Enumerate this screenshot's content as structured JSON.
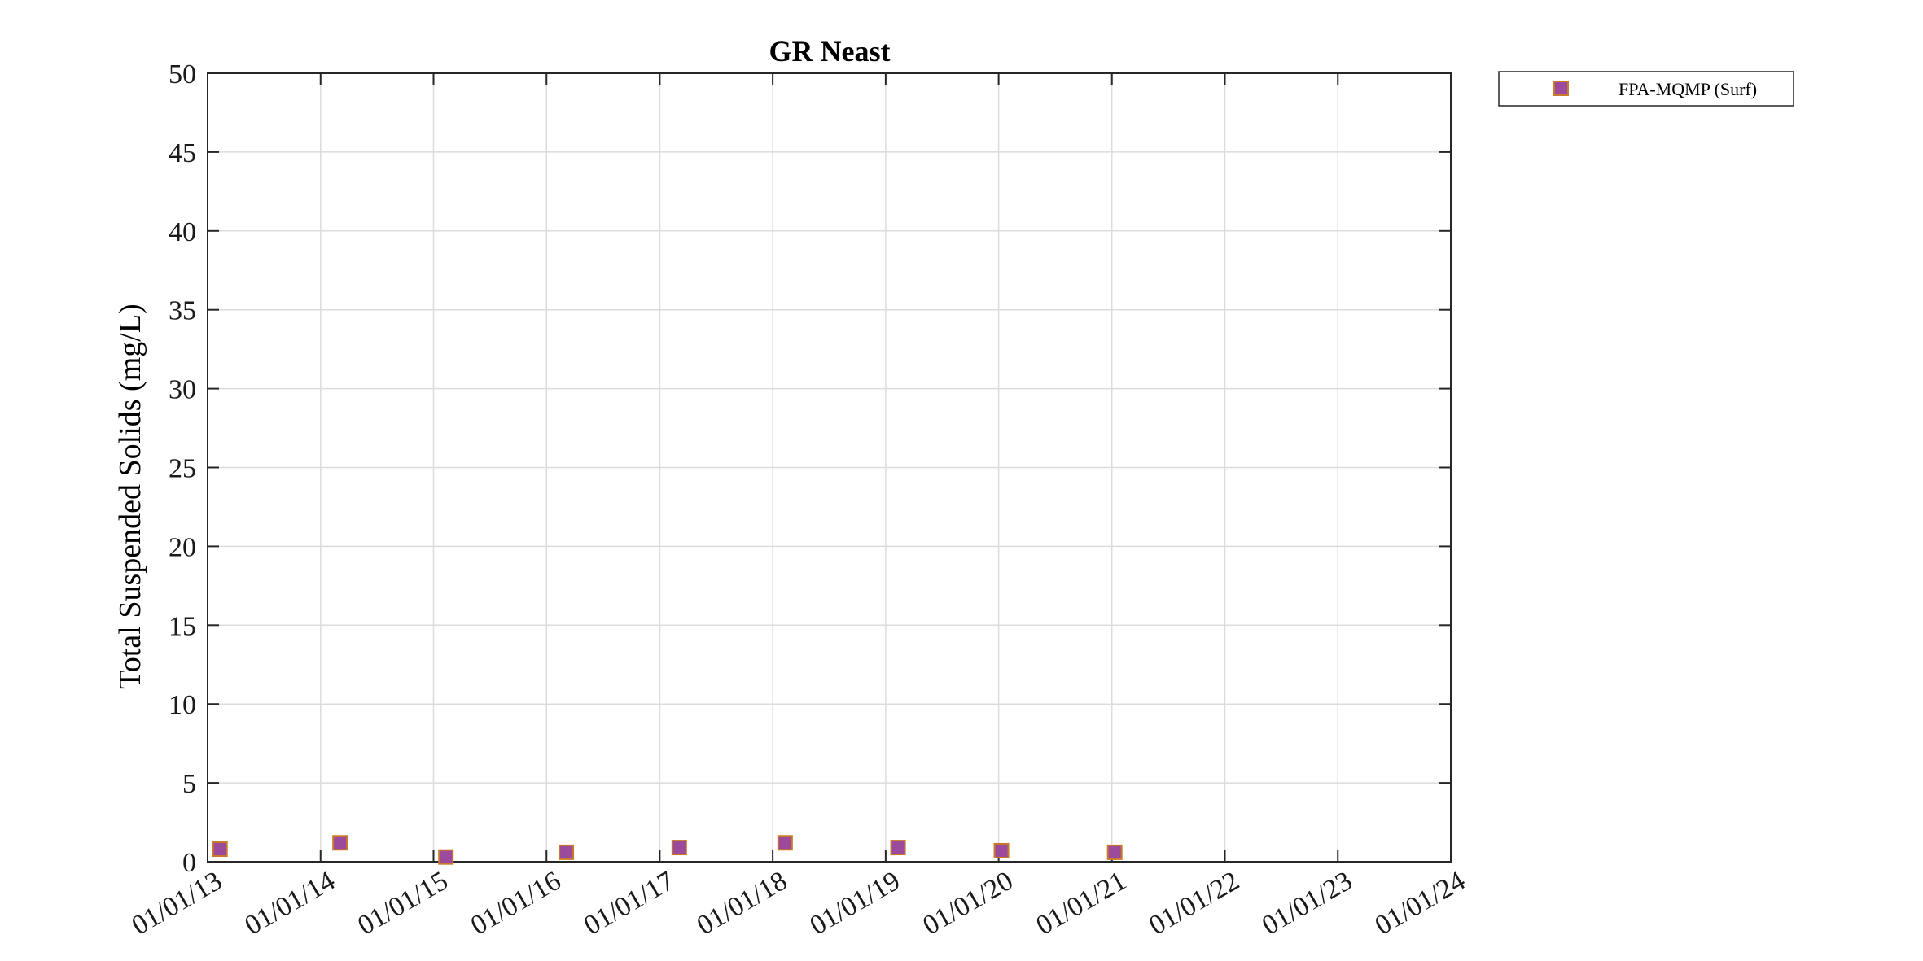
{
  "chart_data": {
    "type": "scatter",
    "title": "GR Neast",
    "xlabel": "",
    "ylabel": "Total Suspended Solids (mg/L)",
    "x_type": "date",
    "x_ticks": [
      "01/01/13",
      "01/01/14",
      "01/01/15",
      "01/01/16",
      "01/01/17",
      "01/01/18",
      "01/01/19",
      "01/01/20",
      "01/01/21",
      "01/01/22",
      "01/01/23",
      "01/01/24"
    ],
    "xlim": [
      "2013-01-01",
      "2024-01-01"
    ],
    "ylim": [
      0,
      50
    ],
    "y_ticks": [
      0,
      5,
      10,
      15,
      20,
      25,
      30,
      35,
      40,
      45,
      50
    ],
    "grid": true,
    "legend_position": "outside-top-right",
    "series": [
      {
        "name": "FPA-MQMP (Surf)",
        "marker": "square",
        "fill_color": "#9b4a9c",
        "edge_color": "#c87a2a",
        "points": [
          {
            "x": "2013-02-10",
            "y": 0.8
          },
          {
            "x": "2014-03-05",
            "y": 1.2
          },
          {
            "x": "2015-02-10",
            "y": 0.3
          },
          {
            "x": "2016-03-05",
            "y": 0.6
          },
          {
            "x": "2017-03-05",
            "y": 0.9
          },
          {
            "x": "2018-02-10",
            "y": 1.2
          },
          {
            "x": "2019-02-10",
            "y": 0.9
          },
          {
            "x": "2020-01-10",
            "y": 0.7
          },
          {
            "x": "2021-01-10",
            "y": 0.6
          }
        ]
      }
    ]
  }
}
